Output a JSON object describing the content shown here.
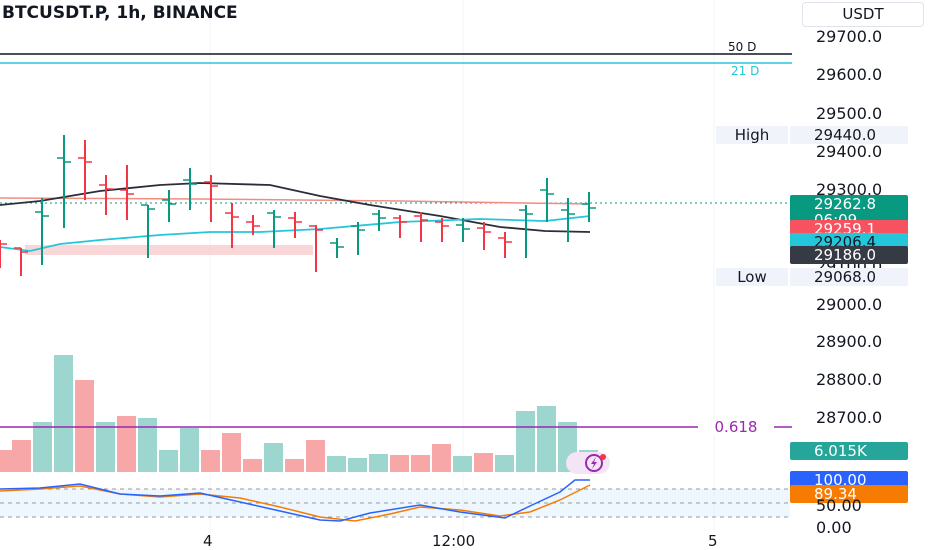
{
  "header": {
    "symbol_title": "BTCUSDT.P, 1h, BINANCE",
    "currency": "USDT"
  },
  "price_axis": {
    "ticks": [
      "29700.0",
      "29600.0",
      "29500.0",
      "29400.0",
      "29300.0",
      "29100.0",
      "29000.0",
      "28900.0",
      "28800.0",
      "28700.0"
    ]
  },
  "levels": {
    "ma50": {
      "label": "50 D",
      "color": "#131722"
    },
    "ma21": {
      "label": "21 D",
      "color": "#26c6da"
    },
    "high": {
      "label": "High",
      "value": "29440.0"
    },
    "low": {
      "label": "Low",
      "value": "29068.0"
    },
    "fib": {
      "label": "0.618",
      "color": "#9c27b0"
    }
  },
  "price_tags": {
    "last": {
      "value": "29262.8",
      "countdown": "06:09",
      "color": "#089981"
    },
    "tag2": {
      "value": "29259.1",
      "color": "#f7525f"
    },
    "tag3": {
      "value": "29206.4",
      "color": "#26c6da"
    },
    "tag4": {
      "value": "29186.0",
      "color": "#363a45"
    }
  },
  "volume": {
    "last": "6.015K",
    "color": "#26a69a"
  },
  "stoch": {
    "k": "100.00",
    "d": "89.34",
    "k_color": "#2962ff",
    "d_color": "#f57c00",
    "ticks": [
      "50.00",
      "0.00"
    ]
  },
  "time_axis": {
    "labels": [
      "4",
      "12:00",
      "5"
    ]
  },
  "colors": {
    "up": "#089981",
    "down": "#f23645",
    "vol_up": "#9dd5cf",
    "vol_down": "#f7a7a7"
  }
}
